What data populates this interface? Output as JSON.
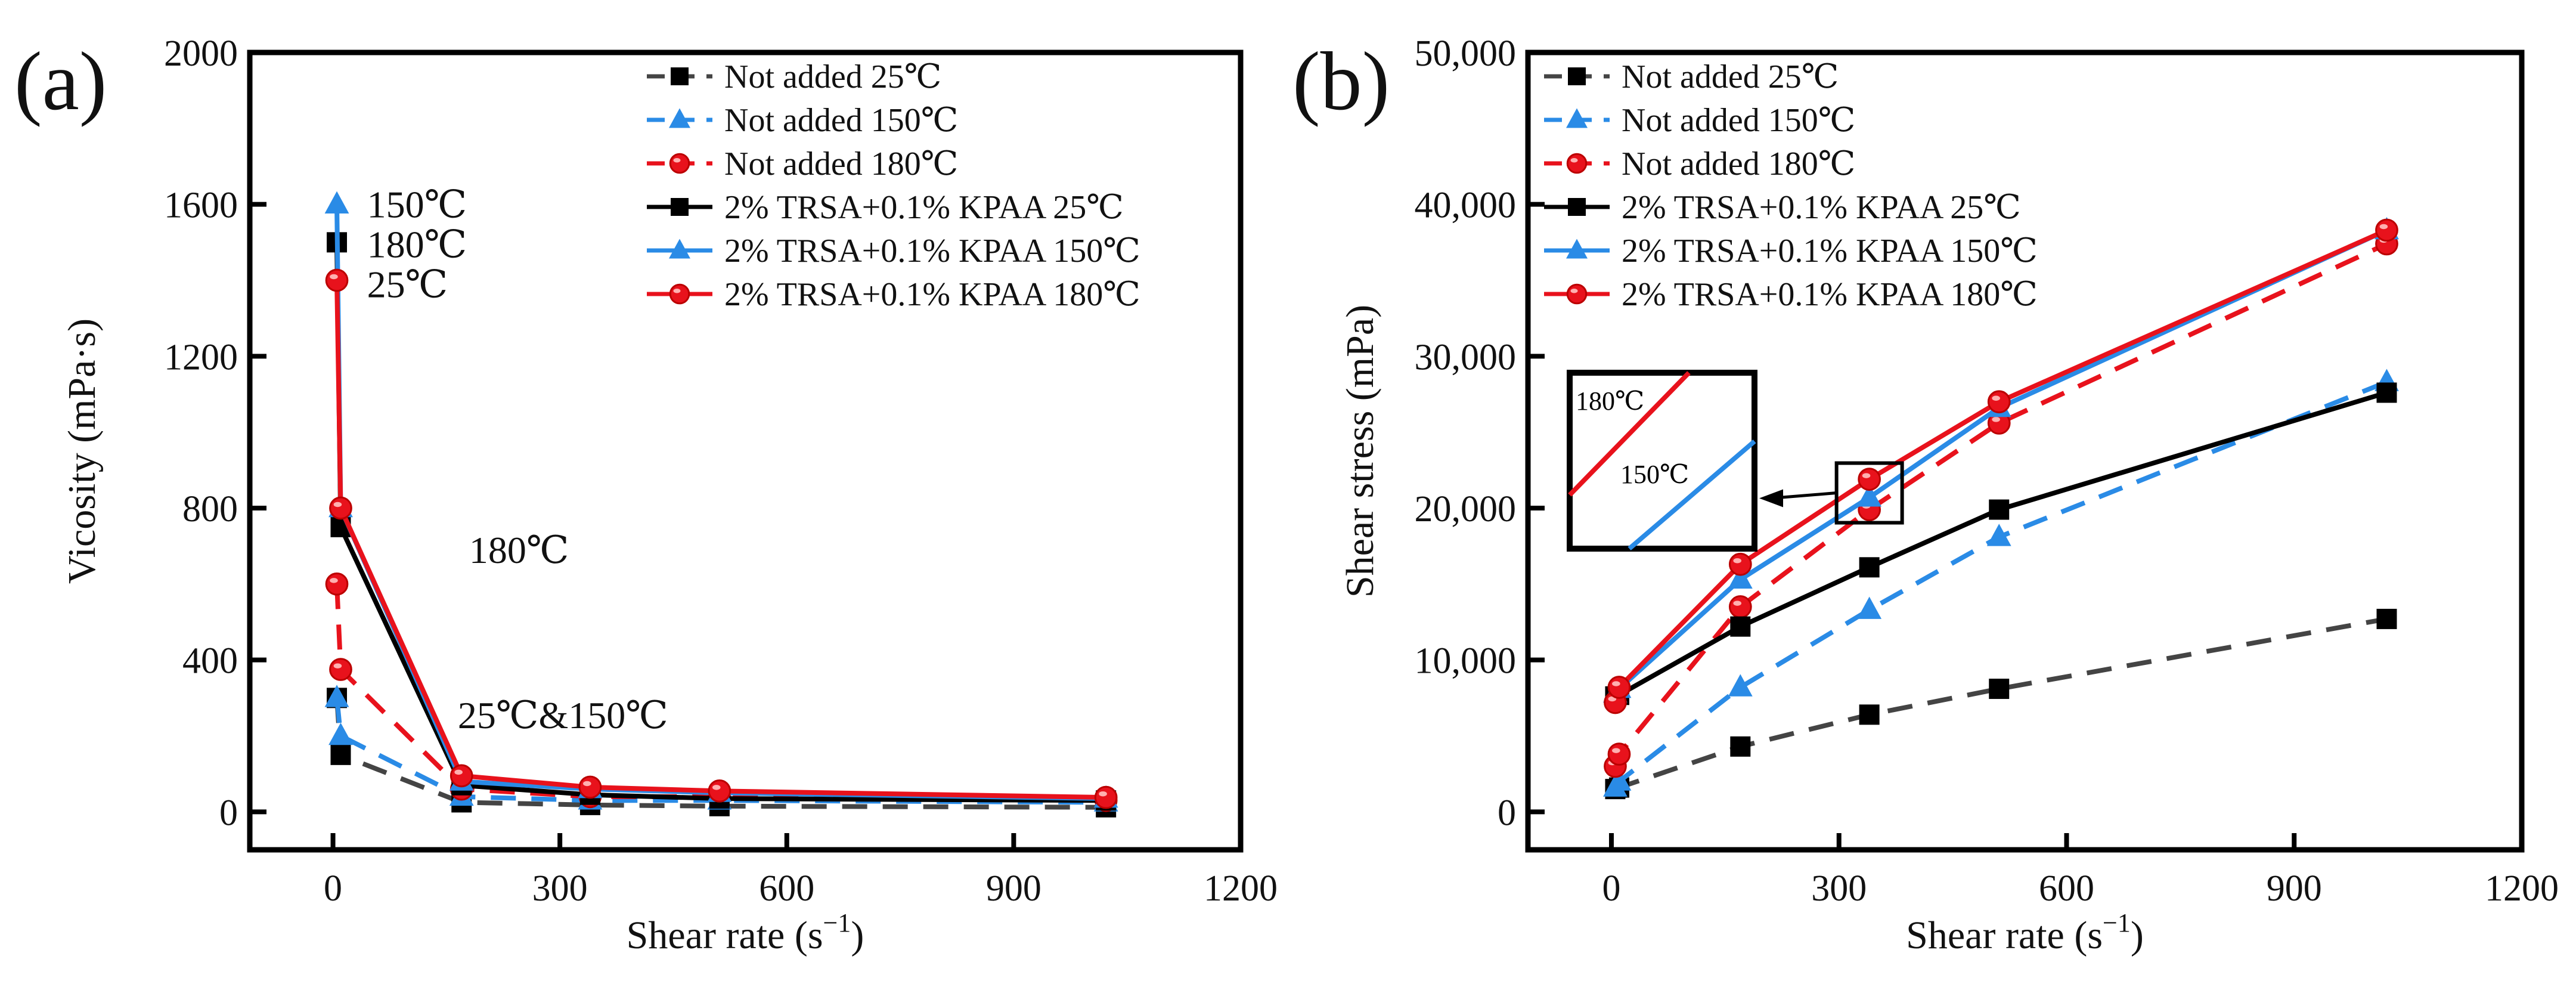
{
  "colors": {
    "black": "#000000",
    "gray": "#444444",
    "blue": "#2a8be6",
    "red": "#e8121c"
  },
  "chart_data": [
    {
      "type": "line",
      "panel_label": "(a)",
      "xlabel": "Shear rate (s",
      "xlabel_sup": "−1",
      "xlabel_close": ")",
      "ylabel": "Vicosity (mPa·s)",
      "xlim": [
        -110,
        1200
      ],
      "ylim": [
        -100,
        2000
      ],
      "xticks": [
        0,
        300,
        600,
        900,
        1200
      ],
      "xtick_labels": [
        "0",
        "300",
        "600",
        "900",
        "1200"
      ],
      "yticks": [
        0,
        400,
        800,
        1200,
        1600,
        2000
      ],
      "ytick_labels": [
        "0",
        "400",
        "800",
        "1200",
        "1600",
        "2000"
      ],
      "legend_position": "top-right",
      "x": [
        5.1,
        10.2,
        170,
        340,
        511,
        1022
      ],
      "series": [
        {
          "name": "Not added 25℃",
          "color": "gray",
          "dash": true,
          "marker": "square",
          "values": [
            300,
            150,
            25,
            18,
            15,
            12
          ]
        },
        {
          "name": "Not added 150℃",
          "color": "blue",
          "dash": true,
          "marker": "triangle",
          "values": [
            300,
            200,
            40,
            30,
            30,
            25
          ]
        },
        {
          "name": "Not added 180℃",
          "color": "red",
          "dash": true,
          "marker": "circle",
          "values": [
            600,
            375,
            60,
            40,
            40,
            30
          ]
        },
        {
          "name": "2% TRSA+0.1% KPAA 25℃",
          "color": "black",
          "dash": false,
          "marker": "square",
          "values": [
            1500,
            750,
            70,
            45,
            35,
            30
          ]
        },
        {
          "name": "2% TRSA+0.1% KPAA 150℃",
          "color": "blue",
          "dash": false,
          "marker": "triangle",
          "values": [
            1600,
            800,
            80,
            60,
            50,
            35
          ]
        },
        {
          "name": "2% TRSA+0.1% KPAA 180℃",
          "color": "red",
          "dash": false,
          "marker": "circle",
          "values": [
            1400,
            800,
            95,
            65,
            55,
            38
          ]
        }
      ],
      "annotations": [
        {
          "text": "150℃",
          "x": 45,
          "y": 1600
        },
        {
          "text": "180℃",
          "x": 45,
          "y": 1495
        },
        {
          "text": "25℃",
          "x": 45,
          "y": 1390
        },
        {
          "text": "180℃",
          "x": 180,
          "y": 690
        },
        {
          "text": "25℃&150℃",
          "x": 165,
          "y": 255
        }
      ]
    },
    {
      "type": "line",
      "panel_label": "(b)",
      "xlabel": "Shear rate (s",
      "xlabel_sup": "−1",
      "xlabel_close": ")",
      "ylabel": "Shear stress (mPa)",
      "xlim": [
        -110,
        1200
      ],
      "ylim": [
        -2500,
        50000
      ],
      "xticks": [
        0,
        300,
        600,
        900,
        1200
      ],
      "xtick_labels": [
        "0",
        "300",
        "600",
        "900",
        "1200"
      ],
      "yticks": [
        0,
        10000,
        20000,
        30000,
        40000,
        50000
      ],
      "ytick_labels": [
        "0",
        "10,000",
        "20,000",
        "30,000",
        "40,000",
        "50,000"
      ],
      "legend_position": "top-left",
      "x": [
        5.1,
        10.2,
        170,
        340,
        511,
        1022
      ],
      "series": [
        {
          "name": "Not added 25℃",
          "color": "gray",
          "dash": true,
          "marker": "square",
          "values": [
            1500,
            1600,
            4300,
            6400,
            8100,
            12700
          ]
        },
        {
          "name": "Not added 150℃",
          "color": "blue",
          "dash": true,
          "marker": "triangle",
          "values": [
            1600,
            2000,
            8200,
            13300,
            18100,
            28300
          ]
        },
        {
          "name": " Not added 180℃",
          "color": "red",
          "dash": true,
          "marker": "circle",
          "values": [
            3000,
            3800,
            13500,
            19900,
            25600,
            37400
          ]
        },
        {
          "name": "2% TRSA+0.1% KPAA 25℃",
          "color": "black",
          "dash": false,
          "marker": "square",
          "values": [
            7600,
            7700,
            12200,
            16100,
            19900,
            27600
          ]
        },
        {
          "name": "2% TRSA+0.1% KPAA 150℃",
          "color": "blue",
          "dash": false,
          "marker": "triangle",
          "values": [
            7800,
            8100,
            15300,
            20700,
            26600,
            38300
          ]
        },
        {
          "name": "2% TRSA+0.1% KPAA 180℃",
          "color": "red",
          "dash": false,
          "marker": "circle",
          "values": [
            7200,
            8200,
            16300,
            21900,
            27000,
            38300
          ]
        }
      ],
      "inset": {
        "labels": [
          "180℃",
          "150℃"
        ],
        "zoom_center": [
          340,
          21000
        ]
      }
    }
  ]
}
